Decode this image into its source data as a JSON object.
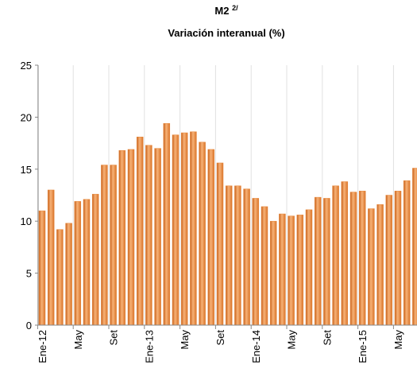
{
  "chart_data": {
    "type": "bar",
    "title": "M2",
    "title_note": "2/",
    "subtitle": "Variación interanual  (%)",
    "categories": [
      "Ene-12",
      null,
      null,
      null,
      "May",
      null,
      null,
      null,
      "Set",
      null,
      null,
      null,
      "Ene-13",
      null,
      null,
      null,
      "May",
      null,
      null,
      null,
      "Set",
      null,
      null,
      null,
      "Ene-14",
      null,
      null,
      null,
      "May",
      null,
      null,
      null,
      "Set",
      null,
      null,
      null,
      "Ene-15",
      null,
      null,
      null,
      "May",
      null,
      null
    ],
    "values": [
      11.0,
      13.0,
      9.2,
      9.8,
      11.9,
      12.1,
      12.6,
      15.4,
      15.4,
      16.8,
      16.9,
      18.1,
      17.3,
      17.0,
      19.4,
      18.3,
      18.5,
      18.6,
      17.6,
      16.9,
      15.6,
      13.4,
      13.4,
      13.1,
      12.2,
      11.4,
      10.0,
      10.7,
      10.5,
      10.6,
      11.1,
      12.3,
      12.2,
      13.4,
      13.8,
      12.8,
      12.9,
      11.2,
      11.6,
      12.5,
      12.9,
      13.9,
      15.1
    ],
    "color": "#e8883a",
    "ylim": [
      0,
      25
    ],
    "yticks": [
      0,
      5,
      10,
      15,
      20,
      25
    ],
    "grid": false
  }
}
